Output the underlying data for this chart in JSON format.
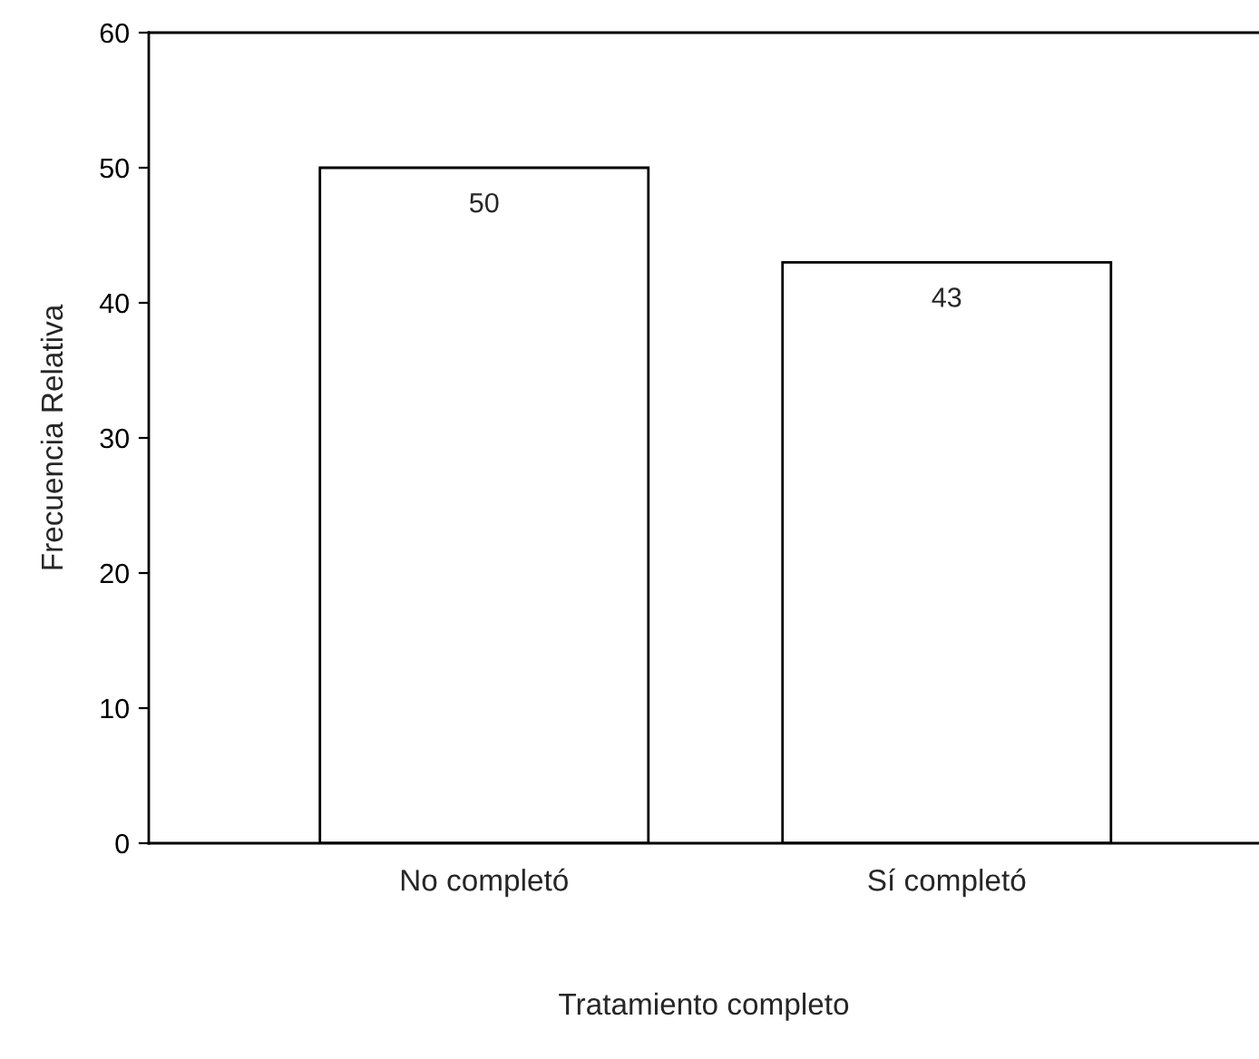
{
  "chart_data": {
    "type": "bar",
    "xlabel": "Tratamiento completo",
    "ylabel": "Frecuencia Relativa",
    "categories": [
      "No completó",
      "Sí completó"
    ],
    "values": [
      50,
      43
    ],
    "color": "#ffffff",
    "ylim": [
      0,
      60
    ],
    "yticks": [
      0,
      10,
      20,
      30,
      40,
      50,
      60
    ],
    "data_labels": true,
    "grid": false,
    "legend": false
  }
}
